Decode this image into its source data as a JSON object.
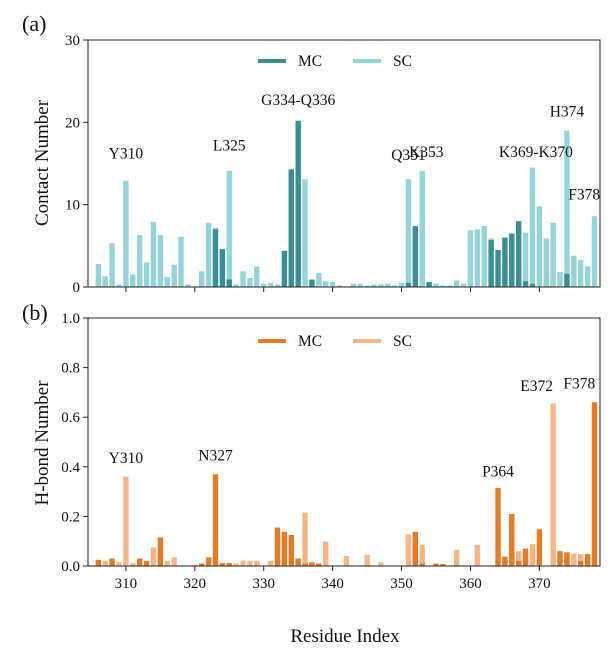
{
  "chart_data": [
    {
      "type": "bar",
      "panel_label": "(a)",
      "ylabel": "Contact Number",
      "ylim": [
        0,
        30
      ],
      "yticks": [
        0,
        10,
        20,
        30
      ],
      "xlim": [
        305,
        378
      ],
      "xticks": [
        310,
        320,
        330,
        340,
        350,
        360,
        370
      ],
      "show_xtick_labels": false,
      "legend_position": "top-center",
      "series": [
        {
          "name": "MC",
          "color": "#3a8e96",
          "x": [
            323,
            324,
            325,
            333,
            334,
            335,
            337,
            351,
            352,
            354,
            363,
            364,
            365,
            366,
            367,
            368,
            369,
            374
          ],
          "values": [
            7.0,
            4.6,
            0.9,
            4.4,
            14.3,
            20.2,
            0.9,
            0.5,
            7.4,
            0.6,
            5.7,
            4.5,
            6.0,
            6.5,
            8.0,
            0.7,
            0.4,
            1.6
          ]
        },
        {
          "name": "SC",
          "color": "#93d3d9",
          "x": [
            306,
            307,
            308,
            309,
            310,
            311,
            312,
            313,
            314,
            315,
            316,
            317,
            318,
            319,
            321,
            322,
            323,
            324,
            325,
            326,
            327,
            328,
            329,
            330,
            331,
            332,
            333,
            334,
            335,
            336,
            337,
            338,
            339,
            340,
            341,
            343,
            344,
            345,
            346,
            347,
            348,
            349,
            350,
            351,
            352,
            353,
            354,
            355,
            356,
            357,
            358,
            359,
            360,
            361,
            362,
            363,
            365,
            366,
            367,
            368,
            369,
            370,
            371,
            372,
            373,
            374,
            375,
            376,
            377,
            378
          ],
          "values": [
            2.8,
            1.3,
            5.3,
            0.3,
            12.9,
            1.5,
            6.3,
            3.0,
            7.9,
            6.3,
            1.2,
            2.7,
            6.1,
            0.3,
            1.9,
            7.8,
            7.2,
            4.5,
            14.1,
            0.3,
            1.9,
            1.1,
            2.5,
            0.4,
            0.5,
            0.3,
            0.4,
            14.2,
            20.0,
            13.1,
            0.9,
            1.7,
            0.7,
            0.6,
            0.2,
            0.4,
            0.4,
            0.2,
            0.3,
            0.3,
            0.4,
            0.2,
            0.5,
            13.1,
            0.3,
            14.1,
            0.6,
            0.4,
            0.2,
            0.2,
            0.8,
            0.4,
            6.9,
            7.0,
            7.4,
            5.9,
            3.5,
            5.0,
            5.8,
            6.6,
            14.5,
            9.8,
            5.9,
            7.8,
            1.8,
            19.0,
            3.8,
            3.3,
            2.5,
            8.6
          ]
        }
      ],
      "annotations": [
        {
          "text": "Y310",
          "x": 310,
          "y": 15.6
        },
        {
          "text": "L325",
          "x": 325,
          "y": 16.6
        },
        {
          "text": "G334-Q336",
          "x": 335,
          "y": 22.1
        },
        {
          "text": "Q351",
          "x": 351,
          "y": 15.4
        },
        {
          "text": "K353",
          "x": 353.6,
          "y": 15.8
        },
        {
          "text": "K369-K370",
          "x": 369.5,
          "y": 15.8
        },
        {
          "text": "H374",
          "x": 374,
          "y": 20.7
        },
        {
          "text": "F378",
          "x": 376.5,
          "y": 10.6
        }
      ]
    },
    {
      "type": "bar",
      "panel_label": "(b)",
      "ylabel": "H-bond Number",
      "xlabel": "Residue Index",
      "ylim": [
        0,
        1.0
      ],
      "yticks": [
        0.0,
        0.2,
        0.4,
        0.6,
        0.8,
        1.0
      ],
      "xlim": [
        305,
        378
      ],
      "xticks": [
        310,
        320,
        330,
        340,
        350,
        360,
        370
      ],
      "show_xtick_labels": true,
      "legend_position": "top-center",
      "series": [
        {
          "name": "MC",
          "color": "#e97a22",
          "x": [
            306,
            308,
            312,
            313,
            315,
            321,
            322,
            323,
            324,
            325,
            332,
            333,
            334,
            335,
            336,
            337,
            338,
            352,
            353,
            355,
            356,
            364,
            365,
            366,
            367,
            368,
            370,
            373,
            374,
            376,
            377,
            378
          ],
          "values": [
            0.025,
            0.03,
            0.03,
            0.02,
            0.115,
            0.01,
            0.035,
            0.37,
            0.012,
            0.012,
            0.155,
            0.138,
            0.125,
            0.03,
            0.01,
            0.015,
            0.01,
            0.138,
            0.01,
            0.01,
            0.008,
            0.315,
            0.038,
            0.21,
            0.02,
            0.07,
            0.148,
            0.06,
            0.055,
            0.02,
            0.048,
            0.66
          ]
        },
        {
          "name": "SC",
          "color": "#f5b687",
          "x": [
            307,
            309,
            310,
            311,
            314,
            316,
            317,
            320,
            326,
            327,
            328,
            329,
            331,
            336,
            338,
            339,
            342,
            345,
            347,
            351,
            352,
            353,
            358,
            361,
            367,
            368,
            369,
            372,
            374,
            375,
            376
          ],
          "values": [
            0.02,
            0.015,
            0.36,
            0.01,
            0.075,
            0.02,
            0.035,
            0.005,
            0.01,
            0.022,
            0.02,
            0.02,
            0.02,
            0.215,
            0.01,
            0.098,
            0.04,
            0.045,
            0.015,
            0.127,
            0.1,
            0.085,
            0.065,
            0.085,
            0.06,
            0.055,
            0.088,
            0.655,
            0.055,
            0.05,
            0.048
          ]
        }
      ],
      "annotations": [
        {
          "text": "Y310",
          "x": 310,
          "y": 0.415
        },
        {
          "text": "N327",
          "x": 323,
          "y": 0.425
        },
        {
          "text": "P364",
          "x": 364,
          "y": 0.36
        },
        {
          "text": "E372",
          "x": 369.6,
          "y": 0.705
        },
        {
          "text": "F378",
          "x": 375.8,
          "y": 0.715
        }
      ]
    }
  ]
}
